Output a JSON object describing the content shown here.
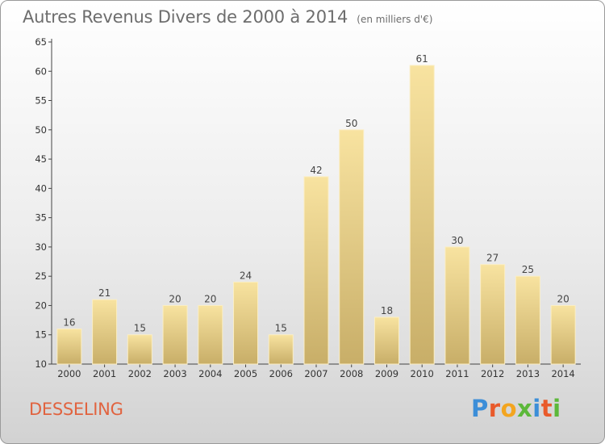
{
  "header": {
    "title": "Autres Revenus Divers de 2000 à 2014",
    "unit": "(en milliers d'€)"
  },
  "footer": {
    "commune": "DESSELING",
    "logo_letters": [
      "P",
      "r",
      "o",
      "x",
      "i",
      "t",
      "i"
    ],
    "logo_colors": [
      "#3c8ed8",
      "#e95a2b",
      "#f3a51f",
      "#5cb83a",
      "#3c8ed8",
      "#e95a2b",
      "#5cb83a"
    ]
  },
  "colors": {
    "bar_light": "#f8e3a0",
    "bar_dark": "#c8ae68",
    "commune": "#e1633f"
  },
  "chart_data": {
    "type": "bar",
    "title": "Autres Revenus Divers de 2000 à 2014",
    "subtitle": "(en milliers d'€)",
    "categories": [
      "2000",
      "2001",
      "2002",
      "2003",
      "2004",
      "2005",
      "2006",
      "2007",
      "2008",
      "2009",
      "2010",
      "2011",
      "2012",
      "2013",
      "2014"
    ],
    "values": [
      16,
      21,
      15,
      20,
      20,
      24,
      15,
      42,
      50,
      18,
      61,
      30,
      27,
      25,
      20
    ],
    "data_labels": [
      "16",
      "21",
      "15",
      "20",
      "20",
      "24",
      "15",
      "42",
      "50",
      "18",
      "61",
      "30",
      "27",
      "25",
      "20"
    ],
    "ylim": [
      10,
      65
    ],
    "yticks": [
      10,
      15,
      20,
      25,
      30,
      35,
      40,
      45,
      50,
      55,
      60,
      65
    ],
    "grid": false,
    "legend": "none"
  }
}
